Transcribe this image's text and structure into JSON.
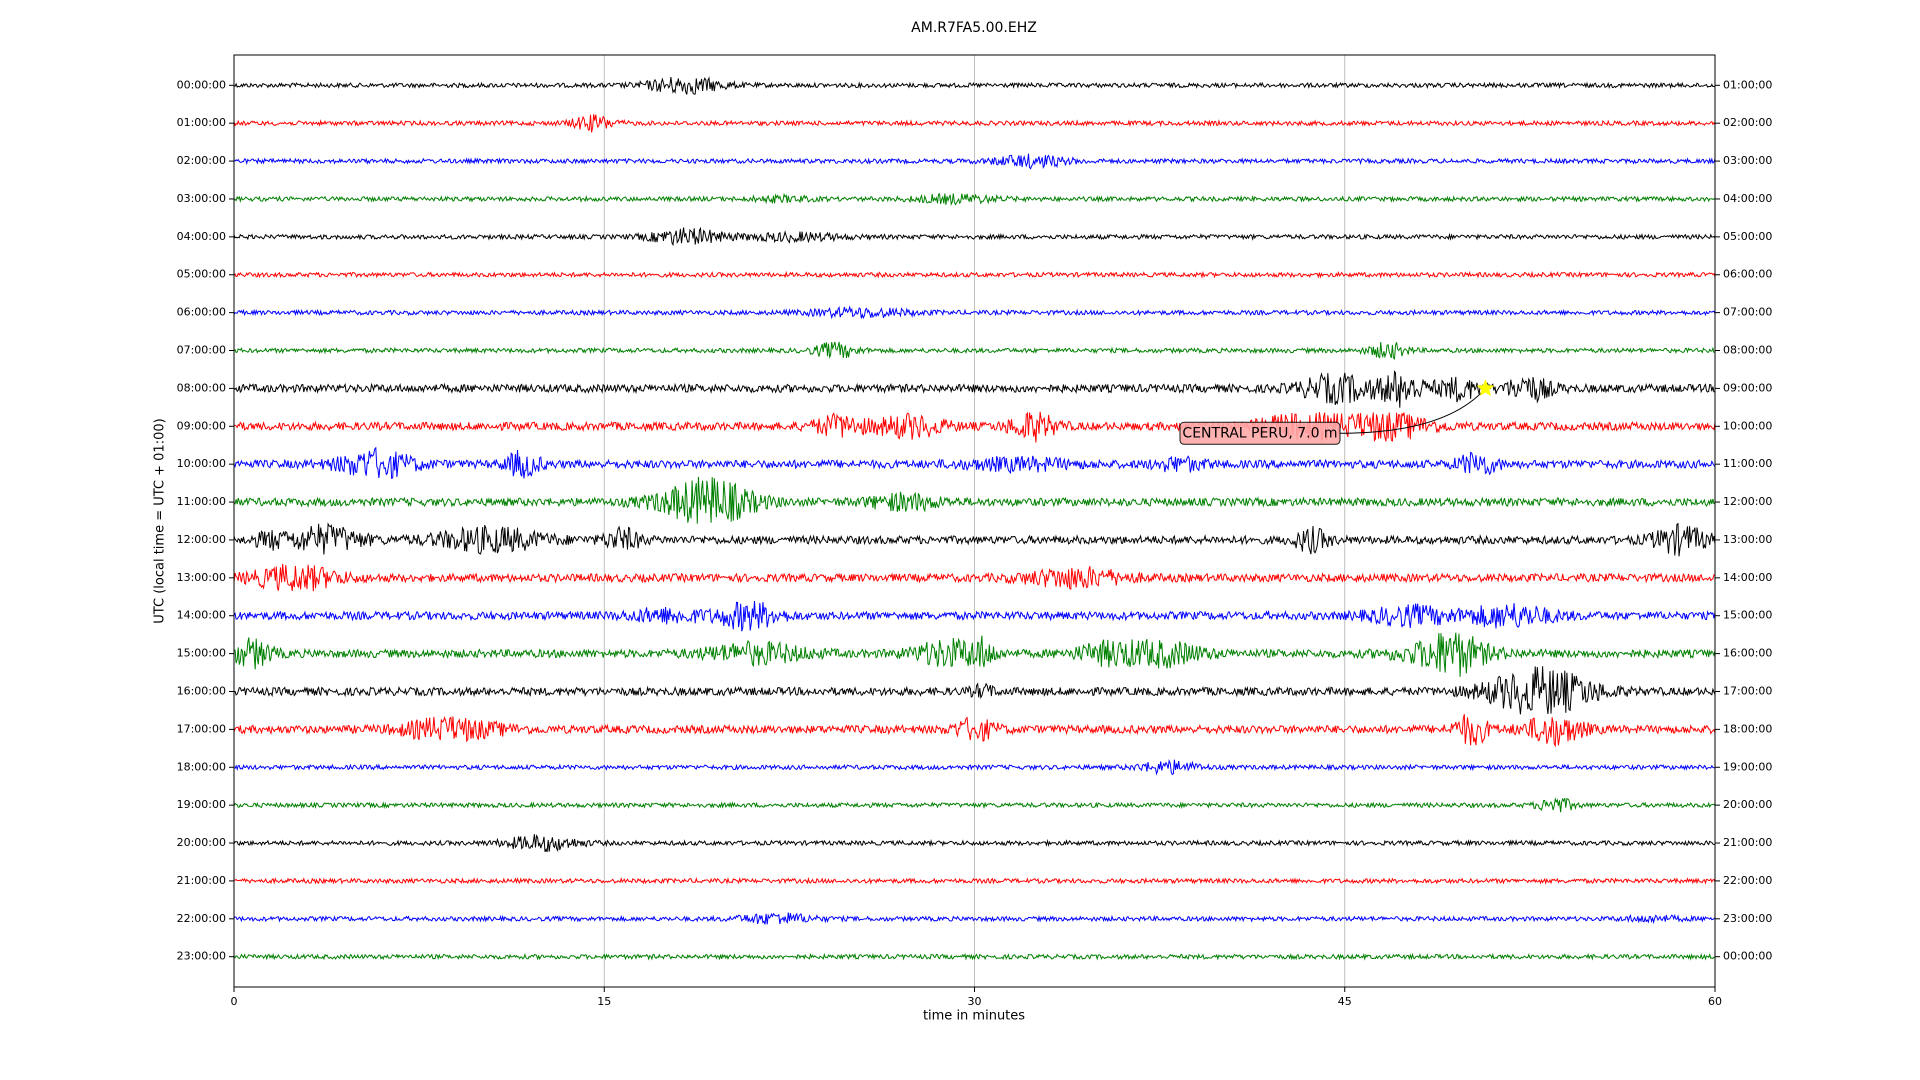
{
  "chart_data": {
    "type": "dayplot",
    "title": "AM.R7FA5.00.EHZ",
    "xlabel": "time in minutes",
    "ylabel": "UTC (local time = UTC + 01:00)",
    "xlim": [
      0,
      60
    ],
    "xticks": [
      0,
      15,
      30,
      45,
      60
    ],
    "grid": true,
    "ylim": [
      23.8,
      -0.8
    ],
    "colors": [
      "#000000",
      "#ff0000",
      "#0000ff",
      "#008000"
    ],
    "yticks": [
      {
        "value": 0,
        "label": "00:00:00"
      },
      {
        "value": 1,
        "label": "01:00:00"
      },
      {
        "value": 2,
        "label": "02:00:00"
      },
      {
        "value": 3,
        "label": "03:00:00"
      },
      {
        "value": 4,
        "label": "04:00:00"
      },
      {
        "value": 5,
        "label": "05:00:00"
      },
      {
        "value": 6,
        "label": "06:00:00"
      },
      {
        "value": 7,
        "label": "07:00:00"
      },
      {
        "value": 8,
        "label": "08:00:00"
      },
      {
        "value": 9,
        "label": "09:00:00"
      },
      {
        "value": 10,
        "label": "10:00:00"
      },
      {
        "value": 11,
        "label": "11:00:00"
      },
      {
        "value": 12,
        "label": "12:00:00"
      },
      {
        "value": 13,
        "label": "13:00:00"
      },
      {
        "value": 14,
        "label": "14:00:00"
      },
      {
        "value": 15,
        "label": "15:00:00"
      },
      {
        "value": 16,
        "label": "16:00:00"
      },
      {
        "value": 17,
        "label": "17:00:00"
      },
      {
        "value": 18,
        "label": "18:00:00"
      },
      {
        "value": 19,
        "label": "19:00:00"
      },
      {
        "value": 20,
        "label": "20:00:00"
      },
      {
        "value": 21,
        "label": "21:00:00"
      },
      {
        "value": 22,
        "label": "22:00:00"
      },
      {
        "value": 23,
        "label": "23:00:00"
      }
    ],
    "y2ticks": [
      {
        "value": 0,
        "label": "01:00:00"
      },
      {
        "value": 1,
        "label": "02:00:00"
      },
      {
        "value": 2,
        "label": "03:00:00"
      },
      {
        "value": 3,
        "label": "04:00:00"
      },
      {
        "value": 4,
        "label": "05:00:00"
      },
      {
        "value": 5,
        "label": "06:00:00"
      },
      {
        "value": 6,
        "label": "07:00:00"
      },
      {
        "value": 7,
        "label": "08:00:00"
      },
      {
        "value": 8,
        "label": "09:00:00"
      },
      {
        "value": 9,
        "label": "10:00:00"
      },
      {
        "value": 10,
        "label": "11:00:00"
      },
      {
        "value": 11,
        "label": "12:00:00"
      },
      {
        "value": 12,
        "label": "13:00:00"
      },
      {
        "value": 13,
        "label": "14:00:00"
      },
      {
        "value": 14,
        "label": "15:00:00"
      },
      {
        "value": 15,
        "label": "16:00:00"
      },
      {
        "value": 16,
        "label": "17:00:00"
      },
      {
        "value": 17,
        "label": "18:00:00"
      },
      {
        "value": 18,
        "label": "19:00:00"
      },
      {
        "value": 19,
        "label": "20:00:00"
      },
      {
        "value": 20,
        "label": "21:00:00"
      },
      {
        "value": 21,
        "label": "22:00:00"
      },
      {
        "value": 22,
        "label": "23:00:00"
      },
      {
        "value": 23,
        "label": "00:00:00"
      }
    ],
    "annotation": {
      "text": "CENTRAL PERU, 7.0 m",
      "x": 50.7,
      "row": 8
    }
  }
}
